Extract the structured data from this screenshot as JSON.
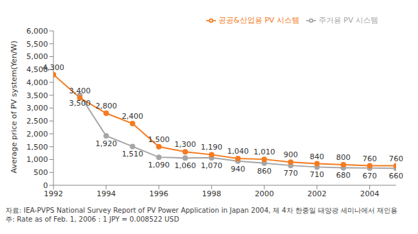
{
  "chart_data": {
    "type": "line",
    "y_label": "Average price of PV system(Yen/W)",
    "x": [
      1992,
      1993,
      1994,
      1995,
      1996,
      1997,
      1998,
      1999,
      2000,
      2001,
      2002,
      2003,
      2004,
      2005
    ],
    "xlim": [
      1992,
      2005
    ],
    "xticks": [
      1992,
      1994,
      1996,
      1998,
      2000,
      2002,
      2004
    ],
    "ylim": [
      0,
      6000
    ],
    "yticks": [
      0,
      500,
      {
        "value": 1000,
        "label": "1,000"
      },
      {
        "value": 1500,
        "label": "1,500"
      },
      {
        "value": 2000,
        "label": "2,000"
      },
      {
        "value": 2500,
        "label": "2,500"
      },
      {
        "value": 3000,
        "label": "3,000"
      },
      {
        "value": 3500,
        "label": "3,500"
      },
      {
        "value": 4000,
        "label": "4,000"
      },
      {
        "value": 4500,
        "label": "4,500"
      },
      {
        "value": 5000,
        "label": "5,000"
      },
      {
        "value": 5500,
        "label": "5,500"
      },
      {
        "value": 6000,
        "label": "6,000"
      }
    ],
    "grid": false,
    "legend": "top",
    "data_labels": true,
    "series": [
      {
        "name": "주거용 PV 시스템",
        "color": "#a6a6a6",
        "marker": "circle",
        "values": [
          null,
          3500,
          1920,
          1510,
          1090,
          1060,
          1070,
          940,
          860,
          770,
          710,
          680,
          670,
          660
        ],
        "value_labels": [
          null,
          "3,500",
          "1,920",
          "1,510",
          "1,090",
          "1,060",
          "1,070",
          "940",
          "860",
          "770",
          "710",
          "680",
          "670",
          "660"
        ]
      },
      {
        "name": "공공&산업용 PV 시스템",
        "color": "#f47b20",
        "marker": "circle",
        "values": [
          4300,
          3400,
          2800,
          2400,
          1500,
          1300,
          1190,
          1040,
          1010,
          900,
          840,
          800,
          760,
          760
        ],
        "value_labels": [
          "4,300",
          "3,400",
          "2,800",
          "2,400",
          "1,500",
          "1,300",
          "1,190",
          "1,040",
          "1,010",
          "900",
          "840",
          "800",
          "760",
          "760"
        ]
      }
    ],
    "annotations": [
      "자료: IEA-PVPS National Survey Report of PV Power Application in Japan 2004, 제 4차 한중일 태양광 세미나에서 재인용",
      "주: Rate as of Feb. 1, 2006 : 1 JPY = 0.008522 USD"
    ]
  }
}
